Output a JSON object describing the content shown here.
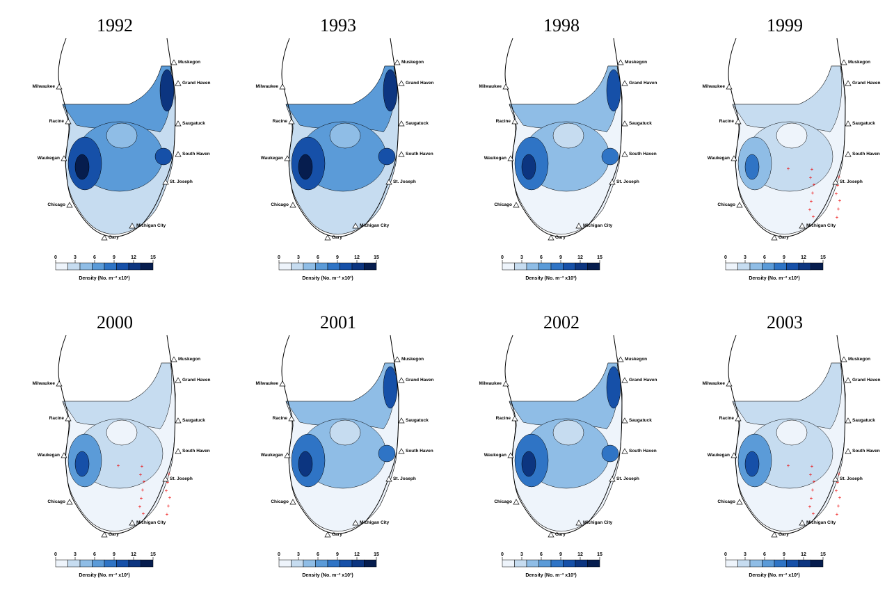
{
  "panels": [
    {
      "year": "1992"
    },
    {
      "year": "1993"
    },
    {
      "year": "1998"
    },
    {
      "year": "1999"
    },
    {
      "year": "2000"
    },
    {
      "year": "2001"
    },
    {
      "year": "2002"
    },
    {
      "year": "2003"
    }
  ],
  "cities": [
    "Milwaukee",
    "Racine",
    "Waukegan",
    "Chicago",
    "Gary",
    "Michigan City",
    "St. Joseph",
    "South Haven",
    "Saugatuck",
    "Grand Haven",
    "Muskegon"
  ],
  "legend": {
    "ticks": [
      0,
      3,
      6,
      9,
      12,
      15
    ],
    "label": "Density (No. m⁻² x10³)"
  }
}
